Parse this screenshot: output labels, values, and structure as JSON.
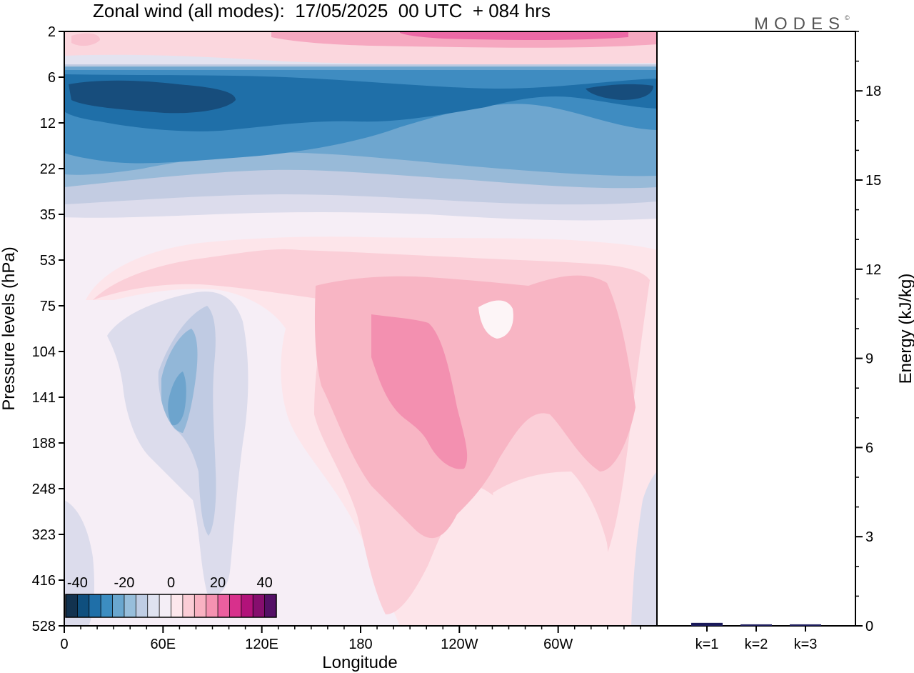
{
  "header": {
    "title": "Zonal wind (all modes):  17/05/2025  00 UTC  + 084 hrs",
    "brand": "MODES",
    "brand_mark": "©"
  },
  "colors": {
    "scale": [
      "#12324f",
      "#0f4f7e",
      "#1f6fa8",
      "#3c8dc1",
      "#6aa7cf",
      "#97bedb",
      "#bfcde4",
      "#dfe2f0",
      "#f4eef6",
      "#fde7ec",
      "#fbcdd6",
      "#f9b2c2",
      "#f592b1",
      "#ec5f9f",
      "#d8308c",
      "#b2127a",
      "#860e6e",
      "#541066"
    ]
  },
  "chart_data": [
    {
      "type": "heatmap",
      "title": "Zonal wind (all modes):  17/05/2025  00 UTC  + 084 hrs",
      "xlabel": "Longitude",
      "ylabel": "Pressure levels (hPa)",
      "x_ticks": [
        "0",
        "60E",
        "120E",
        "180",
        "120W",
        "60W"
      ],
      "y_ticks": [
        "2",
        "6",
        "12",
        "22",
        "35",
        "53",
        "75",
        "104",
        "141",
        "188",
        "248",
        "323",
        "416",
        "528"
      ],
      "y_scale": "log",
      "colorbar": {
        "labels": [
          "-40",
          "-20",
          "0",
          "20",
          "40"
        ],
        "range": [
          -45,
          45
        ],
        "step": 5
      },
      "regions": [
        {
          "name": "upper-positive-band",
          "levels": [
            2,
            4
          ],
          "value": 15
        },
        {
          "name": "easterly-jet-core",
          "levels": [
            7,
            11
          ],
          "value": -40
        },
        {
          "name": "easterly-band",
          "levels": [
            5,
            35
          ],
          "value": -25
        },
        {
          "name": "mid-positive-pacific",
          "levels": [
            90,
            200
          ],
          "value": 25
        },
        {
          "name": "negative-indian-ocean",
          "levels": [
            100,
            300
          ],
          "value": -20
        }
      ]
    },
    {
      "type": "bar",
      "ylabel": "Energy (kJ/kg)",
      "categories": [
        "k=1",
        "k=2",
        "k=3"
      ],
      "values": [
        0.1,
        0.05,
        0.05
      ],
      "ylim": [
        0,
        20
      ],
      "y_ticks": [
        "0",
        "3",
        "6",
        "9",
        "12",
        "15",
        "18"
      ]
    }
  ]
}
